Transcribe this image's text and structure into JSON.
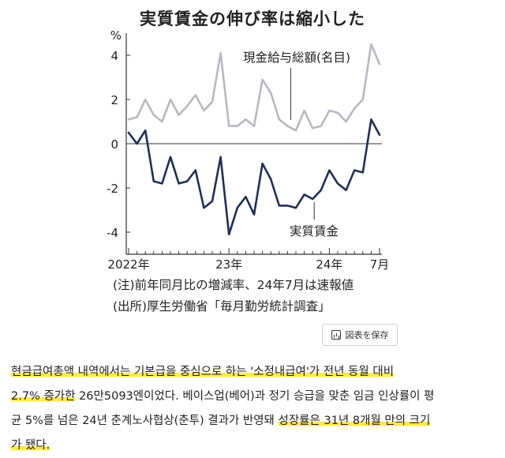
{
  "chart_data": {
    "type": "line",
    "title": "実質賃金の伸び率は縮小した",
    "ylabel": "%",
    "ylim": [
      -5,
      5
    ],
    "yticks": [
      4,
      2,
      0,
      -2,
      -4
    ],
    "x_tick_labels": [
      {
        "index": 0,
        "label": "2022年"
      },
      {
        "index": 12,
        "label": "23年"
      },
      {
        "index": 24,
        "label": "24年"
      },
      {
        "index": 30,
        "label": "7月"
      }
    ],
    "series": [
      {
        "name": "現金給与総額(名目)",
        "color": "#b7b7c2",
        "values": [
          1.1,
          1.2,
          2.0,
          1.3,
          1.0,
          2.0,
          1.3,
          1.7,
          2.2,
          1.5,
          1.9,
          4.1,
          0.8,
          0.8,
          1.1,
          0.8,
          2.9,
          2.3,
          1.1,
          0.8,
          0.6,
          1.5,
          0.7,
          0.8,
          1.5,
          1.4,
          1.0,
          1.6,
          2.0,
          4.5,
          3.6
        ]
      },
      {
        "name": "実質賃金",
        "color": "#1f2f55",
        "values": [
          0.5,
          0.0,
          0.6,
          -1.7,
          -1.8,
          -0.6,
          -1.8,
          -1.7,
          -1.2,
          -2.9,
          -2.6,
          -0.6,
          -4.1,
          -2.9,
          -2.4,
          -3.2,
          -0.9,
          -1.6,
          -2.8,
          -2.8,
          -2.9,
          -2.3,
          -2.5,
          -2.1,
          -1.2,
          -1.8,
          -2.1,
          -1.2,
          -1.3,
          1.1,
          0.4
        ]
      }
    ],
    "annotations": [
      {
        "text": "現金給与総額(名目)",
        "series": 0
      },
      {
        "text": "実質賃金",
        "series": 1
      }
    ],
    "grid": false
  },
  "notes": {
    "line1": "(注)前年同月比の増減率、24年7月は速報値",
    "line2": "(出所)厚生労働省「毎月勤労統計調査」"
  },
  "save_button": {
    "label": "図表を保存"
  },
  "article": {
    "line1": "현금급여총액 내역에서는 기본급을 중심으로 하는 '소정내급여'가 전년 동월 대비",
    "line2_a": "2.7% 증가한",
    "line2_b": " 26만5093엔이었다. 베이스업(베어)과 정기 승급을 맞춘 임금 인상률이 평",
    "line3_a": "균 5%를 넘은 24년 춘계노사협상(춘투) 결과가 반영돼 ",
    "line3_b": "성장률은 31년 8개월 만의 크기",
    "line4": "가 됐다."
  }
}
